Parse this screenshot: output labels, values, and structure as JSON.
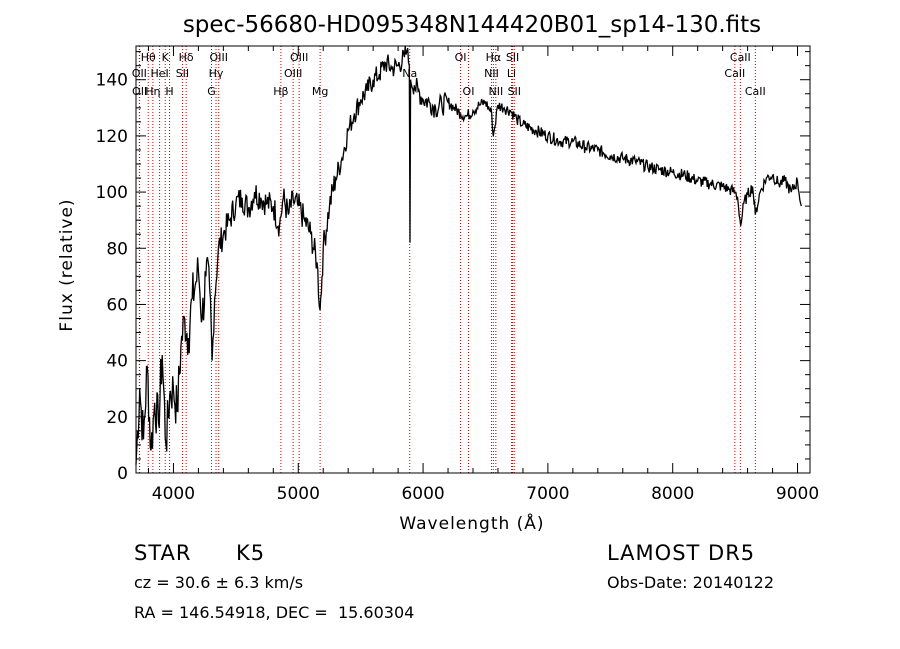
{
  "chart_data": {
    "type": "line",
    "title": "spec-56680-HD095348N144420B01_sp14-130.fits",
    "xlabel": "Wavelength (Å)",
    "ylabel": "Flux (relative)",
    "xlim": [
      3700,
      9100
    ],
    "ylim": [
      0,
      152
    ],
    "x_ticks": [
      4000,
      5000,
      6000,
      7000,
      8000,
      9000
    ],
    "x_tick_labels": [
      "4000",
      "5000",
      "6000",
      "7000",
      "8000",
      "9000"
    ],
    "y_ticks": [
      0,
      20,
      40,
      60,
      80,
      100,
      120,
      140
    ],
    "y_tick_labels": [
      "0",
      "20",
      "40",
      "60",
      "80",
      "100",
      "120",
      "140"
    ],
    "grid": false,
    "line_color": "#000000",
    "marker_line_color": "#cc0000",
    "spectral_lines": [
      {
        "label": "Hθ",
        "wavelength": 3798,
        "row": 0
      },
      {
        "label": "OII",
        "wavelength": 3727,
        "row": 1
      },
      {
        "label": "OII",
        "wavelength": 3729,
        "row": 2
      },
      {
        "label": "Hη",
        "wavelength": 3835,
        "row": 2
      },
      {
        "label": "K",
        "wavelength": 3934,
        "row": 0
      },
      {
        "label": "HeI",
        "wavelength": 3889,
        "row": 1
      },
      {
        "label": "H",
        "wavelength": 3969,
        "row": 2
      },
      {
        "label": "Hδ",
        "wavelength": 4102,
        "row": 0
      },
      {
        "label": "SII",
        "wavelength": 4072,
        "row": 1
      },
      {
        "label": "OIII",
        "wavelength": 4363,
        "row": 0
      },
      {
        "label": "Hγ",
        "wavelength": 4341,
        "row": 1
      },
      {
        "label": "G",
        "wavelength": 4305,
        "row": 2
      },
      {
        "label": "OIII",
        "wavelength": 5007,
        "row": 0
      },
      {
        "label": "OIII",
        "wavelength": 4959,
        "row": 1
      },
      {
        "label": "Hβ",
        "wavelength": 4861,
        "row": 2
      },
      {
        "label": "Mg",
        "wavelength": 5175,
        "row": 2
      },
      {
        "label": "Na",
        "wavelength": 5893,
        "row": 1
      },
      {
        "label": "OI",
        "wavelength": 6300,
        "row": 0
      },
      {
        "label": "OI",
        "wavelength": 6364,
        "row": 2
      },
      {
        "label": "Hα",
        "wavelength": 6563,
        "row": 0
      },
      {
        "label": "NII",
        "wavelength": 6548,
        "row": 1
      },
      {
        "label": "NII",
        "wavelength": 6583,
        "row": 2
      },
      {
        "label": "SII",
        "wavelength": 6717,
        "row": 0
      },
      {
        "label": "Li",
        "wavelength": 6708,
        "row": 1
      },
      {
        "label": "SII",
        "wavelength": 6731,
        "row": 2
      },
      {
        "label": "CaII",
        "wavelength": 8542,
        "row": 0
      },
      {
        "label": "CaII",
        "wavelength": 8498,
        "row": 1
      },
      {
        "label": "CaII",
        "wavelength": 8662,
        "row": 2
      }
    ],
    "series": [
      {
        "x": [
          3700,
          3730,
          3760,
          3790,
          3820,
          3850,
          3880,
          3910,
          3940,
          3970,
          4000,
          4030,
          4060,
          4090,
          4120,
          4150,
          4180,
          4200,
          4230,
          4260,
          4290,
          4310,
          4330,
          4360,
          4400,
          4450,
          4500,
          4550,
          4600,
          4650,
          4700,
          4750,
          4800,
          4850,
          4880,
          4920,
          4960,
          5000,
          5050,
          5100,
          5150,
          5175,
          5190,
          5200,
          5250,
          5300,
          5350,
          5400,
          5450,
          5500,
          5550,
          5600,
          5650,
          5700,
          5750,
          5800,
          5850,
          5870,
          5890,
          5895,
          5900,
          5930,
          5960,
          6000,
          6050,
          6100,
          6150,
          6200,
          6250,
          6300,
          6350,
          6400,
          6450,
          6500,
          6550,
          6563,
          6600,
          6650,
          6700,
          6750,
          6800,
          6900,
          7000,
          7100,
          7200,
          7300,
          7400,
          7500,
          7600,
          7700,
          7800,
          7900,
          8000,
          8100,
          8200,
          8300,
          8400,
          8450,
          8500,
          8520,
          8545,
          8570,
          8600,
          8640,
          8662,
          8700,
          8750,
          8800,
          8850,
          8900,
          8950,
          9000,
          9030
        ],
        "y": [
          3,
          30,
          12,
          38,
          8,
          25,
          18,
          42,
          10,
          28,
          30,
          22,
          45,
          55,
          48,
          62,
          68,
          72,
          55,
          70,
          66,
          40,
          62,
          80,
          85,
          90,
          96,
          98,
          94,
          100,
          98,
          96,
          95,
          88,
          98,
          92,
          97,
          95,
          90,
          85,
          75,
          58,
          70,
          80,
          95,
          105,
          112,
          122,
          128,
          133,
          136,
          140,
          142,
          146,
          144,
          145,
          148,
          150,
          145,
          82,
          140,
          138,
          136,
          133,
          132,
          130,
          131,
          132,
          130,
          128,
          127,
          129,
          131,
          132,
          128,
          120,
          131,
          130,
          129,
          126,
          124,
          122,
          120,
          118,
          118,
          116,
          115,
          113,
          112,
          111,
          109,
          108,
          107,
          106,
          104,
          103,
          102,
          101,
          100,
          98,
          88,
          96,
          99,
          102,
          92,
          100,
          105,
          106,
          103,
          104,
          100,
          104,
          95
        ]
      }
    ]
  },
  "info": {
    "object_type": "STAR",
    "subclass": "K5",
    "survey": "LAMOST DR5",
    "cz_line": "cz = 30.6 ± 6.3 km/s",
    "obs_date": "Obs-Date: 20140122",
    "coords": "RA = 146.54918, DEC =  15.60304"
  }
}
